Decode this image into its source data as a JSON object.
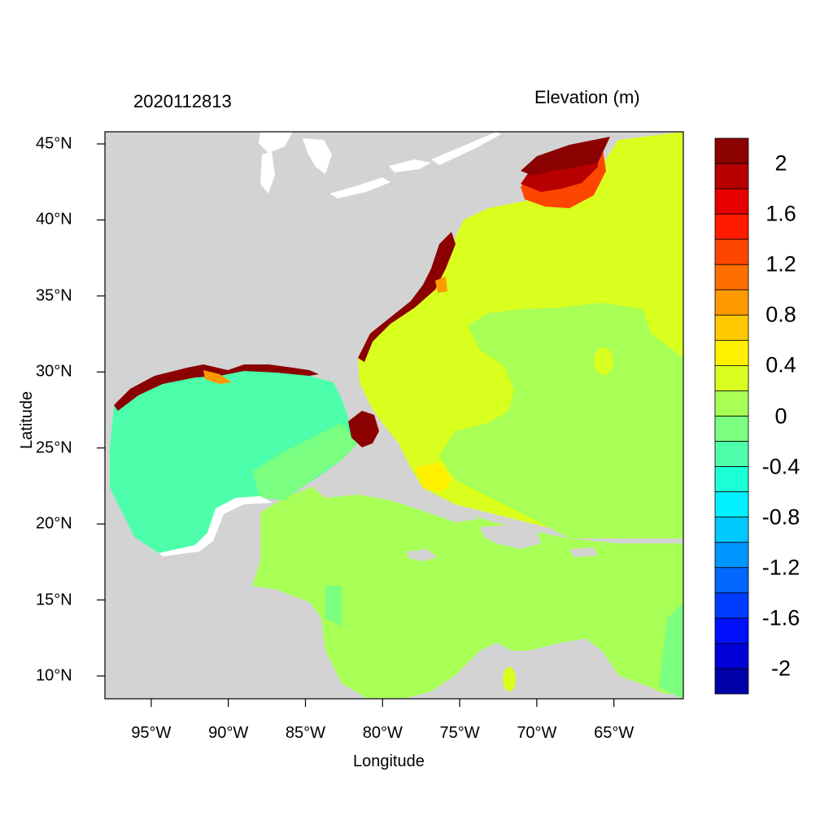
{
  "title_left": "2020112813",
  "title_right": "Elevation (m)",
  "axes": {
    "xlabel": "Longitude",
    "ylabel": "Latitude",
    "x_ticks": [
      "95°W",
      "90°W",
      "85°W",
      "80°W",
      "75°W",
      "70°W",
      "65°W"
    ],
    "x_tick_values": [
      -95,
      -90,
      -85,
      -80,
      -75,
      -70,
      -65
    ],
    "y_ticks": [
      "45°N",
      "40°N",
      "35°N",
      "30°N",
      "25°N",
      "20°N",
      "15°N",
      "10°N"
    ],
    "y_tick_values": [
      45,
      40,
      35,
      30,
      25,
      20,
      15,
      10
    ],
    "xlim": [
      -98,
      -60.5
    ],
    "ylim": [
      8.5,
      45.8
    ]
  },
  "colorbar": {
    "labels": [
      "2",
      "1.6",
      "1.2",
      "0.8",
      "0.4",
      "0",
      "-0.4",
      "-0.8",
      "-1.2",
      "-1.6",
      "-2"
    ],
    "levels": [
      2.2,
      2.0,
      1.8,
      1.6,
      1.4,
      1.2,
      1.0,
      0.8,
      0.6,
      0.4,
      0.2,
      0.0,
      -0.2,
      -0.4,
      -0.6,
      -0.8,
      -1.0,
      -1.2,
      -1.4,
      -1.6,
      -1.8,
      -2.0,
      -2.2
    ],
    "colors": [
      "#8b0000",
      "#b80000",
      "#e60000",
      "#ff1a00",
      "#ff4600",
      "#ff6e00",
      "#ff9900",
      "#ffc800",
      "#fff000",
      "#d9ff1f",
      "#a8ff55",
      "#7aff80",
      "#4dffaa",
      "#1affd6",
      "#00f0ff",
      "#00c8ff",
      "#0096ff",
      "#0068ff",
      "#003cff",
      "#0010ff",
      "#0000d6",
      "#0000a8"
    ]
  },
  "colors": {
    "land": "#d3d3d3",
    "water_body": "#ffffff",
    "gulf": "#4dffaa",
    "atlantic_high": "#d9ff1f",
    "caribbean": "#a8ff55",
    "surge_max": "#8b0000"
  }
}
